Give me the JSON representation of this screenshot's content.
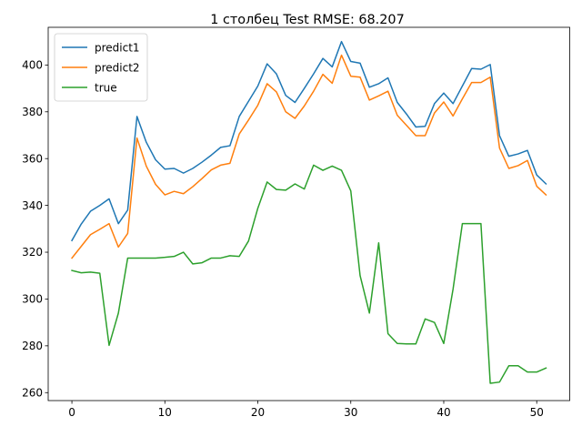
{
  "chart_data": {
    "type": "line",
    "title": "1 столбец Test RMSE: 68.207",
    "xlabel": "",
    "ylabel": "",
    "xlim": [
      -2.55,
      53.55
    ],
    "ylim": [
      256.6,
      416.1
    ],
    "x_ticks": [
      0,
      10,
      20,
      30,
      40,
      50
    ],
    "y_ticks": [
      260,
      280,
      300,
      320,
      340,
      360,
      380,
      400
    ],
    "grid": false,
    "legend_position": "top-left",
    "x": [
      0,
      1,
      2,
      3,
      4,
      5,
      6,
      7,
      8,
      9,
      10,
      11,
      12,
      13,
      14,
      15,
      16,
      17,
      18,
      19,
      20,
      21,
      22,
      23,
      24,
      25,
      26,
      27,
      28,
      29,
      30,
      31,
      32,
      33,
      34,
      35,
      36,
      37,
      38,
      39,
      40,
      41,
      42,
      43,
      44,
      45,
      46,
      47,
      48,
      49,
      50,
      51
    ],
    "series": [
      {
        "name": "predict1",
        "color": "#1f77b4",
        "values": [
          325,
          332,
          337.5,
          340,
          342.8,
          332.2,
          338,
          378,
          367,
          359.5,
          355.5,
          355.8,
          353.8,
          355.8,
          358.5,
          361.5,
          364.8,
          365.5,
          378,
          384.5,
          391,
          400.5,
          396.2,
          387,
          384,
          390,
          396.2,
          402.8,
          399.2,
          410,
          401.5,
          400.8,
          390.5,
          392,
          394.5,
          384,
          379,
          373.5,
          373.8,
          383.5,
          388,
          383.5,
          391,
          398.5,
          398.2,
          400.2,
          369.8,
          361,
          362,
          363.5,
          353,
          349.2
        ]
      },
      {
        "name": "predict2",
        "color": "#ff7f0e",
        "values": [
          317.5,
          322.5,
          327.5,
          329.8,
          332.2,
          322.2,
          328,
          368.8,
          356.8,
          349,
          344.5,
          346,
          345,
          348,
          351.5,
          355.2,
          357.2,
          358,
          370.5,
          376.5,
          382.8,
          392,
          388.5,
          380,
          377.2,
          382.5,
          388.8,
          396,
          392.2,
          404.2,
          395.2,
          394.8,
          385,
          386.8,
          388.8,
          378.5,
          374.2,
          369.8,
          369.8,
          379.5,
          384.2,
          378.2,
          385.5,
          392.5,
          392.5,
          394.8,
          364.5,
          355.8,
          357,
          359.2,
          348.2,
          344.5
        ]
      },
      {
        "name": "true",
        "color": "#2ca02c",
        "values": [
          312.2,
          311.2,
          311.5,
          311,
          280.2,
          294,
          317.5,
          317.5,
          317.5,
          317.5,
          317.8,
          318.2,
          320,
          315,
          315.5,
          317.5,
          317.5,
          318.5,
          318.2,
          324.8,
          338.8,
          350,
          346.8,
          346.5,
          349.2,
          347,
          357.2,
          355,
          356.8,
          355,
          346.2,
          310,
          294,
          324,
          285.2,
          281,
          280.8,
          280.8,
          291.5,
          290,
          281,
          304.2,
          332.2,
          332.2,
          332.2,
          264,
          264.5,
          271.5,
          271.5,
          268.8,
          268.8,
          270.5
        ]
      }
    ]
  }
}
